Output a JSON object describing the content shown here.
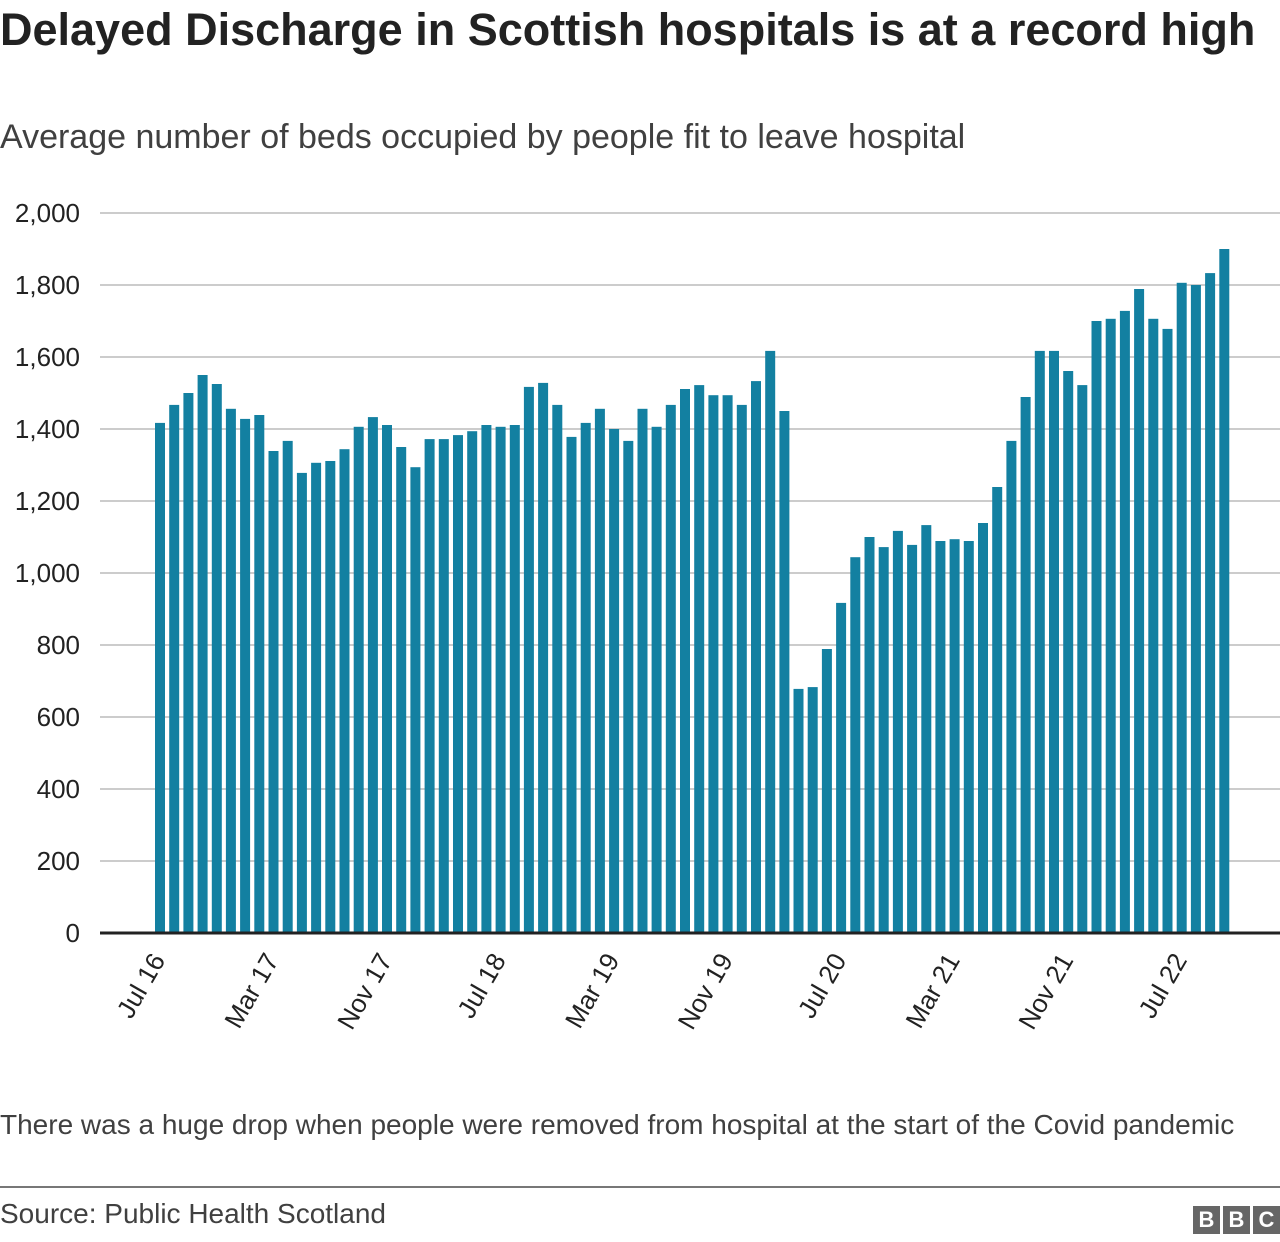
{
  "chart_data": {
    "type": "bar",
    "title": "Delayed Discharge in Scottish hospitals is at a record high",
    "subtitle": "Average number of beds occupied by people fit to leave hospital",
    "xlabel": "",
    "ylabel": "",
    "ylim": [
      0,
      2000
    ],
    "yticks": [
      "0",
      "200",
      "400",
      "600",
      "800",
      "1,000",
      "1,200",
      "1,400",
      "1,600",
      "1,800",
      "2,000"
    ],
    "ytick_values": [
      0,
      200,
      400,
      600,
      800,
      1000,
      1200,
      1400,
      1600,
      1800,
      2000
    ],
    "xtick_labels": [
      {
        "index": 0,
        "label": "Jul 16"
      },
      {
        "index": 8,
        "label": "Mar 17"
      },
      {
        "index": 16,
        "label": "Nov 17"
      },
      {
        "index": 24,
        "label": "Jul 18"
      },
      {
        "index": 32,
        "label": "Mar 19"
      },
      {
        "index": 40,
        "label": "Nov 19"
      },
      {
        "index": 48,
        "label": "Jul 20"
      },
      {
        "index": 56,
        "label": "Mar 21"
      },
      {
        "index": 64,
        "label": "Nov 21"
      },
      {
        "index": 72,
        "label": "Jul 22"
      }
    ],
    "grid": true,
    "color": "#1380A1",
    "values": [
      1417,
      1467,
      1500,
      1550,
      1525,
      1456,
      1428,
      1439,
      1339,
      1367,
      1278,
      1306,
      1311,
      1344,
      1406,
      1433,
      1411,
      1350,
      1294,
      1372,
      1372,
      1383,
      1394,
      1411,
      1406,
      1411,
      1517,
      1528,
      1467,
      1378,
      1417,
      1456,
      1400,
      1367,
      1456,
      1406,
      1467,
      1511,
      1522,
      1494,
      1494,
      1467,
      1533,
      1617,
      1450,
      678,
      683,
      789,
      917,
      1044,
      1100,
      1072,
      1117,
      1078,
      1133,
      1089,
      1094,
      1089,
      1139,
      1239,
      1367,
      1489,
      1617,
      1617,
      1561,
      1522,
      1700,
      1706,
      1728,
      1789,
      1706,
      1678,
      1806,
      1800,
      1833,
      1900
    ]
  },
  "footer": {
    "note": "There was a huge drop when people were removed from hospital at the start of the Covid pandemic",
    "source": "Source: Public Health Scotland",
    "logo": [
      "B",
      "B",
      "C"
    ]
  }
}
